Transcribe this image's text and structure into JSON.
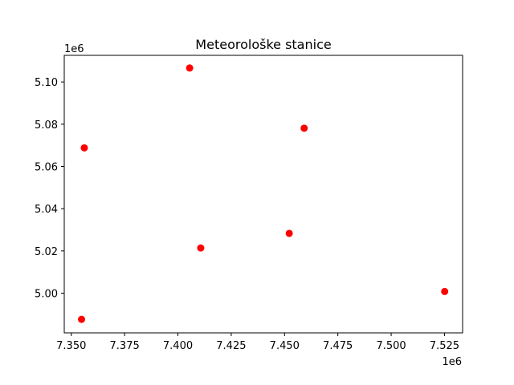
{
  "chart_data": {
    "type": "scatter",
    "title": "Meteorološke stanice",
    "xlabel": "",
    "ylabel": "",
    "x_offset_label": "1e6",
    "y_offset_label": "1e6",
    "xlim": [
      7.3467,
      7.5335
    ],
    "ylim": [
      4.9812,
      5.1126
    ],
    "x_ticks": [
      7.35,
      7.375,
      7.4,
      7.425,
      7.45,
      7.475,
      7.5,
      7.525
    ],
    "x_tick_labels": [
      "7.350",
      "7.375",
      "7.400",
      "7.425",
      "7.450",
      "7.475",
      "7.500",
      "7.525"
    ],
    "y_ticks": [
      5.0,
      5.02,
      5.04,
      5.06,
      5.08,
      5.1
    ],
    "y_tick_labels": [
      "5.00",
      "5.02",
      "5.04",
      "5.06",
      "5.08",
      "5.10"
    ],
    "grid": false,
    "marker_color": "#ff0000",
    "x": [
      7.3548,
      7.3561,
      7.4055,
      7.4107,
      7.4522,
      7.4592,
      7.5251
    ],
    "y": [
      4.9876,
      5.0688,
      5.1066,
      5.0214,
      5.0283,
      5.0781,
      5.0008
    ]
  }
}
